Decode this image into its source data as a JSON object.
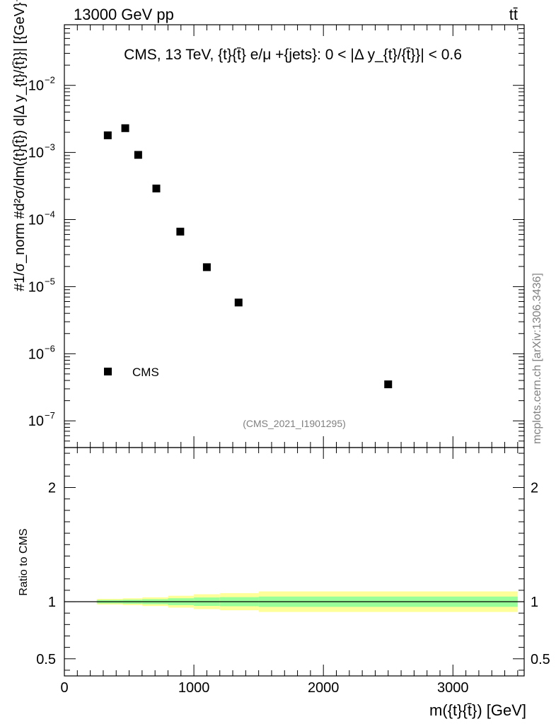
{
  "header": {
    "left": "13000 GeV pp",
    "right": "tt̄"
  },
  "watermark": {
    "side": "mcplots.cern.ch [arXiv:1306.3436]",
    "analysis": "(CMS_2021_I1901295)"
  },
  "colors": {
    "band_outer": "#ffff99",
    "band_inner": "#99ff99",
    "marker": "#000000",
    "watermark": "#808080"
  },
  "chart_data": [
    {
      "type": "scatter",
      "title": "CMS, 13 TeV, {t}{t̄} e/μ +{jets}: 0 < |Δ y_{t}/{t̄}}| < 0.6",
      "xlabel": "",
      "ylabel": "#1/σ_norm #d²σ/dm({t}{t̄}) d|Δ y_{t}/{t̄}}| [{GeV}⁻¹]",
      "xlim": [
        0,
        3550
      ],
      "ylim": [
        4e-08,
        0.08
      ],
      "yscale": "log",
      "y_ticks": [
        {
          "value": 1e-07,
          "label": "10",
          "exp": "−7"
        },
        {
          "value": 1e-06,
          "label": "10",
          "exp": "−6"
        },
        {
          "value": 1e-05,
          "label": "10",
          "exp": "−5"
        },
        {
          "value": 0.0001,
          "label": "10",
          "exp": "−4"
        },
        {
          "value": 0.001,
          "label": "10",
          "exp": "−3"
        },
        {
          "value": 0.01,
          "label": "10",
          "exp": "−2"
        }
      ],
      "legend": {
        "label": "CMS",
        "placement": "bottom-left"
      },
      "series": [
        {
          "name": "CMS",
          "x": [
            335,
            470,
            570,
            710,
            895,
            1100,
            1345,
            2500
          ],
          "y": [
            0.0018,
            0.0023,
            0.00092,
            0.00029,
            6.6e-05,
            1.95e-05,
            5.8e-06,
            3.5e-07
          ]
        }
      ]
    },
    {
      "type": "area",
      "xlabel": "m({t}{t̄}) [GeV]",
      "ylabel": "Ratio to CMS",
      "xlim": [
        0,
        3550
      ],
      "ylim": [
        0.35,
        2.35
      ],
      "x_ticks": [
        {
          "value": 0,
          "label": "0"
        },
        {
          "value": 1000,
          "label": "1000"
        },
        {
          "value": 2000,
          "label": "2000"
        },
        {
          "value": 3000,
          "label": "3000"
        }
      ],
      "y_ticks": [
        {
          "value": 0.5,
          "label": "0.5"
        },
        {
          "value": 1,
          "label": "1"
        },
        {
          "value": 2,
          "label": "2"
        }
      ],
      "reference_line": 1,
      "bins": [
        250,
        450,
        600,
        800,
        1000,
        1200,
        1500,
        3500
      ],
      "inner_band": [
        {
          "low": 0.985,
          "high": 1.015
        },
        {
          "low": 0.982,
          "high": 1.018
        },
        {
          "low": 0.978,
          "high": 1.022
        },
        {
          "low": 0.97,
          "high": 1.03
        },
        {
          "low": 0.963,
          "high": 1.037
        },
        {
          "low": 0.96,
          "high": 1.04
        },
        {
          "low": 0.955,
          "high": 1.045
        }
      ],
      "outer_band": [
        {
          "low": 0.975,
          "high": 1.025
        },
        {
          "low": 0.97,
          "high": 1.03
        },
        {
          "low": 0.962,
          "high": 1.038
        },
        {
          "low": 0.948,
          "high": 1.052
        },
        {
          "low": 0.935,
          "high": 1.065
        },
        {
          "low": 0.925,
          "high": 1.075
        },
        {
          "low": 0.91,
          "high": 1.09
        }
      ]
    }
  ]
}
